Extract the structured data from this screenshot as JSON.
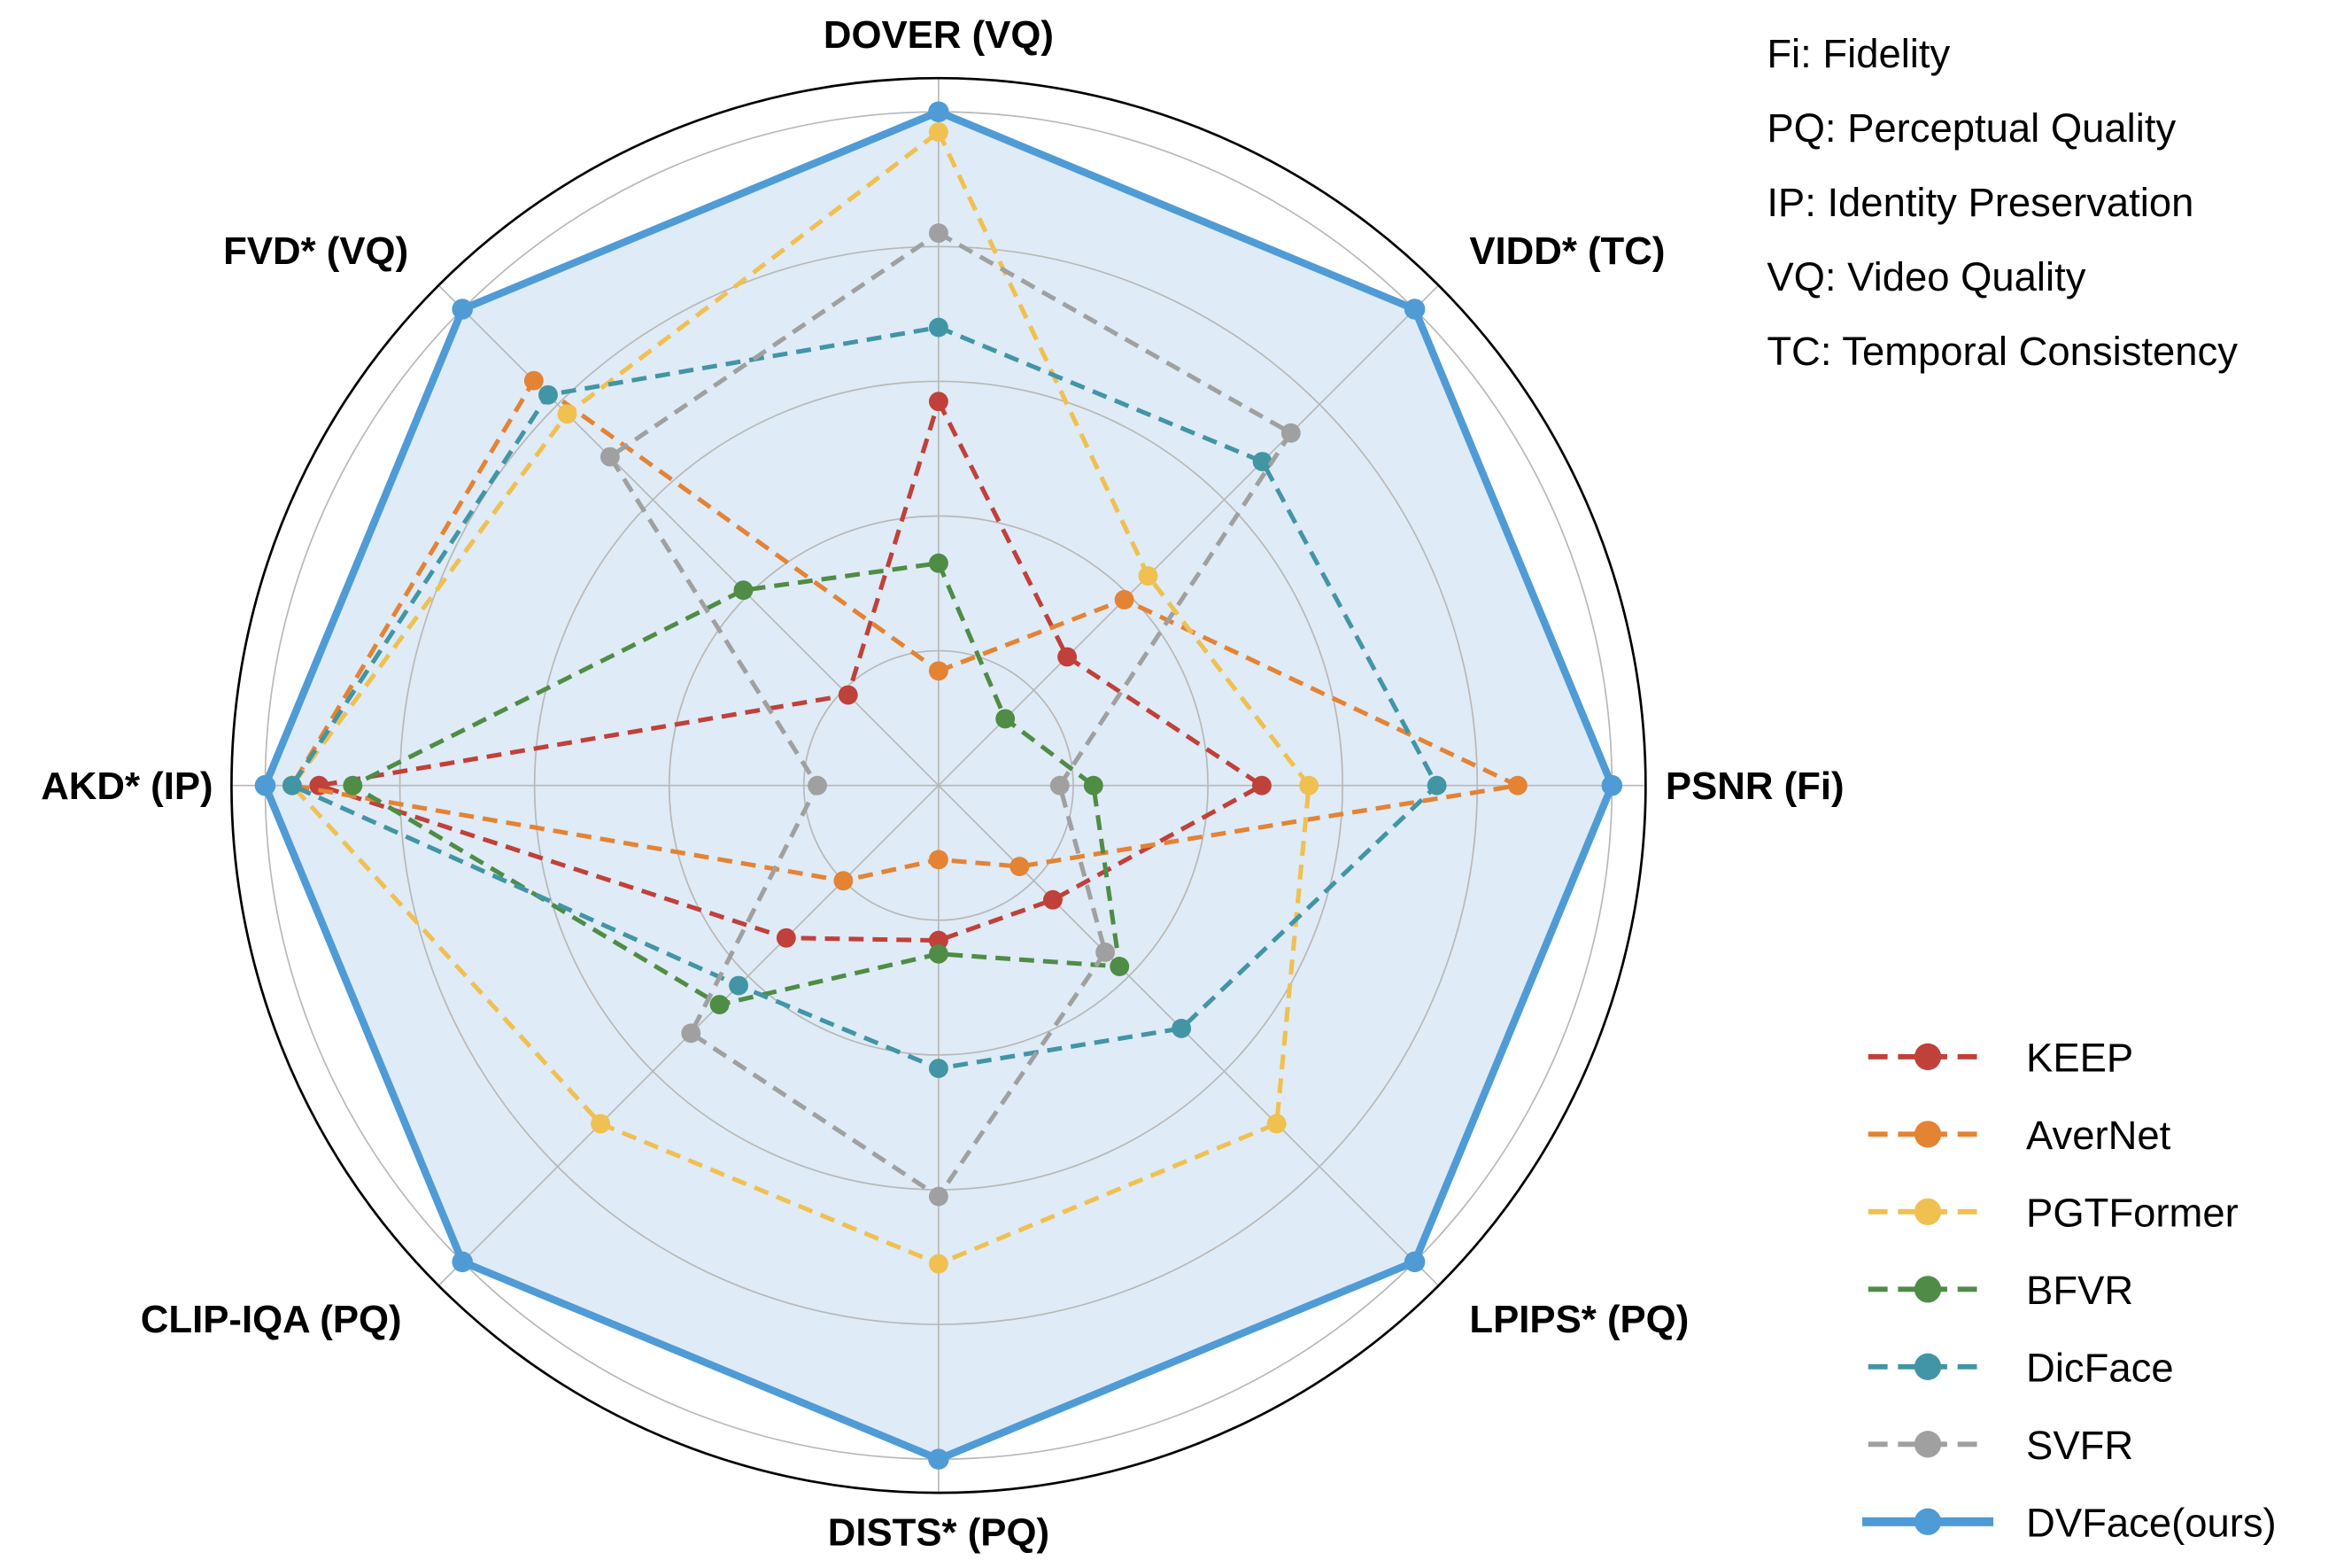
{
  "chart_data": {
    "type": "radar",
    "axes": [
      "DOVER (VQ)",
      "VIDD* (TC)",
      "PSNR (Fi)",
      "LPIPS* (PQ)",
      "DISTS* (PQ)",
      "CLIP-IQA (PQ)",
      "AKD* (IP)",
      "FVD* (VQ)"
    ],
    "rlim": [
      0,
      1.05
    ],
    "grid": true,
    "grid_levels": [
      0.2,
      0.4,
      0.6,
      0.8,
      1.0
    ],
    "legend_position": "bottom-right",
    "notes": [
      "Fi: Fidelity",
      "PQ: Perceptual Quality",
      "IP: Identity Preservation",
      "VQ: Video Quality",
      "TC: Temporal Consistency"
    ],
    "series": [
      {
        "name": "KEEP",
        "color": "#c0403a",
        "style": "dashed",
        "values": [
          0.57,
          0.27,
          0.48,
          0.24,
          0.23,
          0.32,
          0.92,
          0.19
        ]
      },
      {
        "name": "AverNet",
        "color": "#e48334",
        "style": "dashed",
        "values": [
          0.17,
          0.39,
          0.86,
          0.17,
          0.11,
          0.2,
          0.96,
          0.85
        ]
      },
      {
        "name": "PGTFormer",
        "color": "#f0c050",
        "style": "dashed",
        "values": [
          0.97,
          0.44,
          0.55,
          0.71,
          0.71,
          0.71,
          0.96,
          0.78
        ]
      },
      {
        "name": "BFVR",
        "color": "#4f8c46",
        "style": "dashed",
        "values": [
          0.33,
          0.14,
          0.23,
          0.38,
          0.25,
          0.46,
          0.87,
          0.41
        ]
      },
      {
        "name": "DicFace",
        "color": "#4295a5",
        "style": "dashed",
        "values": [
          0.68,
          0.68,
          0.74,
          0.51,
          0.42,
          0.42,
          0.96,
          0.82
        ]
      },
      {
        "name": "SVFR",
        "color": "#a0a0a0",
        "style": "dashed",
        "values": [
          0.82,
          0.74,
          0.18,
          0.35,
          0.61,
          0.52,
          0.18,
          0.69
        ]
      },
      {
        "name": "DVFace(ours)",
        "color": "#4f9bd6",
        "style": "solid",
        "fill": "#dfebf6",
        "values": [
          1.0,
          1.0,
          1.0,
          1.0,
          1.0,
          1.0,
          1.0,
          1.0
        ]
      }
    ]
  }
}
